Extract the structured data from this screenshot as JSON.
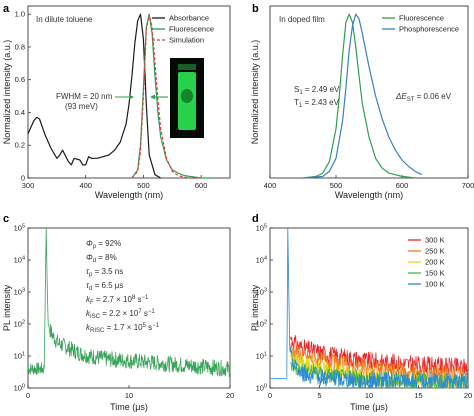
{
  "colors": {
    "absorbance": "#1a1a1a",
    "fluorescence": "#2e9e52",
    "simulation": "#e0393b",
    "phosphorescence": "#3a7fc4",
    "decay_c": "#3aa35a",
    "t300": "#e8262a",
    "t250": "#f07d1e",
    "t200": "#e3d51a",
    "t150": "#49b83c",
    "t100": "#2a8ad8",
    "fwhm": "#2e9e52"
  },
  "chart_data": [
    {
      "type": "line",
      "panel_label": "a",
      "note": "In dilute toluene",
      "xlabel": "Wavelength (nm)",
      "ylabel": "Normalized intensity (a.u.)",
      "xlim": [
        300,
        650
      ],
      "ylim": [
        0,
        1.05
      ],
      "xticks": [
        "300",
        "400",
        "500",
        "600"
      ],
      "yticks": [
        "0",
        "0.2",
        "0.4",
        "0.6",
        "0.8",
        "1.0"
      ],
      "legend_position": "top-right",
      "annotation": {
        "line1": "FWHM = 20 nm",
        "line2": "(93 meV)"
      },
      "series": [
        {
          "name": "Absorbance",
          "style": "solid",
          "colorKey": "absorbance",
          "x": [
            300,
            310,
            315,
            320,
            325,
            330,
            340,
            350,
            355,
            360,
            370,
            375,
            380,
            390,
            395,
            400,
            405,
            410,
            420,
            430,
            440,
            450,
            460,
            470,
            475,
            480,
            485,
            490,
            495,
            500,
            505,
            510,
            520,
            530
          ],
          "y": [
            0.27,
            0.35,
            0.37,
            0.36,
            0.31,
            0.26,
            0.18,
            0.12,
            0.14,
            0.17,
            0.1,
            0.08,
            0.12,
            0.11,
            0.08,
            0.08,
            0.13,
            0.12,
            0.12,
            0.13,
            0.14,
            0.17,
            0.22,
            0.33,
            0.45,
            0.62,
            0.82,
            0.96,
            1.0,
            0.85,
            0.45,
            0.14,
            0.02,
            0.0
          ]
        },
        {
          "name": "Fluorescence",
          "style": "solid",
          "colorKey": "fluorescence",
          "x": [
            480,
            490,
            495,
            500,
            505,
            510,
            515,
            520,
            525,
            530,
            540,
            550,
            560,
            570,
            580,
            600,
            620
          ],
          "y": [
            0.0,
            0.05,
            0.2,
            0.55,
            0.92,
            1.0,
            0.88,
            0.62,
            0.4,
            0.25,
            0.11,
            0.05,
            0.03,
            0.015,
            0.01,
            0.0,
            0.0
          ]
        },
        {
          "name": "Simulation",
          "style": "dashed",
          "colorKey": "simulation",
          "x": [
            480,
            490,
            495,
            500,
            505,
            510,
            515,
            520,
            525,
            530,
            540,
            550,
            560,
            570,
            580,
            600
          ],
          "y": [
            0.0,
            0.04,
            0.16,
            0.5,
            0.9,
            1.0,
            0.92,
            0.7,
            0.48,
            0.3,
            0.12,
            0.04,
            0.015,
            0.005,
            0.0,
            0.0
          ]
        }
      ]
    },
    {
      "type": "line",
      "panel_label": "b",
      "note": "In doped film",
      "xlabel": "Wavelength (nm)",
      "ylabel": "Normalized intensity (a.u.)",
      "xlim": [
        400,
        700
      ],
      "ylim": [
        0,
        1.05
      ],
      "xticks": [
        "400",
        "500",
        "600",
        "700"
      ],
      "legend_position": "top-right",
      "annotations": {
        "s1_main": "S",
        "s1_sub": "1",
        "s1_val": " = 2.49 eV",
        "t1_main": "T",
        "t1_sub": "1",
        "t1_val": " = 2.43 eV",
        "dest_main": "ΔE",
        "dest_sub": "ST",
        "dest_val": " = 0.06 eV"
      },
      "series": [
        {
          "name": "Fluorescence",
          "style": "solid",
          "colorKey": "fluorescence",
          "x": [
            450,
            470,
            480,
            490,
            500,
            505,
            510,
            515,
            520,
            525,
            530,
            535,
            540,
            550,
            560,
            570,
            580,
            600,
            620
          ],
          "y": [
            0.0,
            0.01,
            0.03,
            0.1,
            0.3,
            0.5,
            0.75,
            0.95,
            1.0,
            0.95,
            0.8,
            0.62,
            0.45,
            0.25,
            0.12,
            0.06,
            0.03,
            0.01,
            0.0
          ]
        },
        {
          "name": "Phosphorescence",
          "style": "solid",
          "colorKey": "phosphorescence",
          "x": [
            450,
            480,
            490,
            500,
            510,
            515,
            520,
            525,
            530,
            535,
            540,
            545,
            550,
            560,
            570,
            580,
            590,
            600,
            610,
            620,
            630
          ],
          "y": [
            0.0,
            0.01,
            0.04,
            0.12,
            0.35,
            0.55,
            0.78,
            0.93,
            1.0,
            0.97,
            0.88,
            0.78,
            0.68,
            0.5,
            0.36,
            0.25,
            0.17,
            0.11,
            0.07,
            0.04,
            0.02
          ]
        }
      ]
    },
    {
      "type": "line",
      "panel_label": "c",
      "xlabel": "Time (μs)",
      "ylabel": "PL intensity",
      "xlim": [
        0,
        20
      ],
      "ylim_exp": [
        0,
        5
      ],
      "xticks": [
        "0",
        "10",
        "20"
      ],
      "yticks_exp": [
        "0",
        "1",
        "2",
        "3",
        "4",
        "5"
      ],
      "params": [
        {
          "main": "Φ",
          "sub": "p",
          "val": " = 92%"
        },
        {
          "main": "Φ",
          "sub": "d",
          "val": " = 8%"
        },
        {
          "main": "τ",
          "sub": "p",
          "val": " = 3.5 ns"
        },
        {
          "main": "τ",
          "sub": "d",
          "val": " = 6.5 μs"
        },
        {
          "main": "k",
          "sub": "F",
          "val": " = 2.7 × 10",
          "sup": "8",
          "unit": " s",
          "unitsup": "−1"
        },
        {
          "main": "k",
          "sub": "ISC",
          "val": " = 2.2 × 10",
          "sup": "7",
          "unit": " s",
          "unitsup": "−1"
        },
        {
          "main": "k",
          "sub": "RISC",
          "val": " = 1.7 × 10",
          "sup": "5",
          "unit": " s",
          "unitsup": "−1"
        }
      ],
      "series": [
        {
          "name": "decay",
          "colorKey": "decay_c",
          "x": [
            0,
            1.6,
            1.8,
            1.9,
            2.0,
            2.2,
            2.5,
            3,
            4,
            5,
            6,
            8,
            10,
            12,
            14,
            16,
            18,
            20
          ],
          "log10y": [
            0.6,
            0.6,
            5.0,
            3.2,
            2.0,
            1.8,
            1.6,
            1.4,
            1.25,
            1.1,
            1.0,
            0.9,
            0.85,
            0.8,
            0.75,
            0.7,
            0.65,
            0.6
          ]
        }
      ]
    },
    {
      "type": "line",
      "panel_label": "d",
      "xlabel": "Time (μs)",
      "ylabel": "PL intensity",
      "xlim": [
        0,
        20
      ],
      "ylim_exp": [
        0,
        5
      ],
      "xticks": [
        "0",
        "5",
        "10",
        "15",
        "20"
      ],
      "yticks_exp": [
        "0",
        "1",
        "2",
        "3",
        "4",
        "5"
      ],
      "legend_position": "top-right",
      "series": [
        {
          "name": "300 K",
          "colorKey": "t300",
          "x": [
            2,
            2.5,
            3,
            4,
            6,
            8,
            10,
            14,
            20
          ],
          "log10y": [
            1.6,
            1.4,
            1.3,
            1.2,
            1.05,
            0.95,
            0.85,
            0.75,
            0.65
          ]
        },
        {
          "name": "250 K",
          "colorKey": "t250",
          "x": [
            2,
            2.5,
            3,
            4,
            6,
            8,
            10,
            14,
            20
          ],
          "log10y": [
            1.3,
            1.15,
            1.05,
            0.95,
            0.8,
            0.7,
            0.6,
            0.5,
            0.4
          ]
        },
        {
          "name": "200 K",
          "colorKey": "t200",
          "x": [
            2,
            2.5,
            3,
            4,
            6,
            8,
            10,
            14,
            20
          ],
          "log10y": [
            1.0,
            0.9,
            0.8,
            0.7,
            0.55,
            0.45,
            0.35,
            0.25,
            0.15
          ]
        },
        {
          "name": "150 K",
          "colorKey": "t150",
          "x": [
            2,
            2.5,
            3,
            4,
            6,
            8,
            10,
            14,
            20
          ],
          "log10y": [
            0.8,
            0.7,
            0.6,
            0.5,
            0.4,
            0.3,
            0.25,
            0.2,
            0.1
          ]
        },
        {
          "name": "100 K",
          "colorKey": "t100",
          "x": [
            0,
            1.7,
            1.8,
            1.9,
            2.0,
            2.2,
            2.5,
            3,
            4,
            6,
            10,
            20
          ],
          "log10y": [
            0.3,
            0.3,
            5.0,
            3.0,
            1.2,
            0.9,
            0.7,
            0.5,
            0.4,
            0.3,
            0.25,
            0.2
          ]
        }
      ]
    }
  ]
}
